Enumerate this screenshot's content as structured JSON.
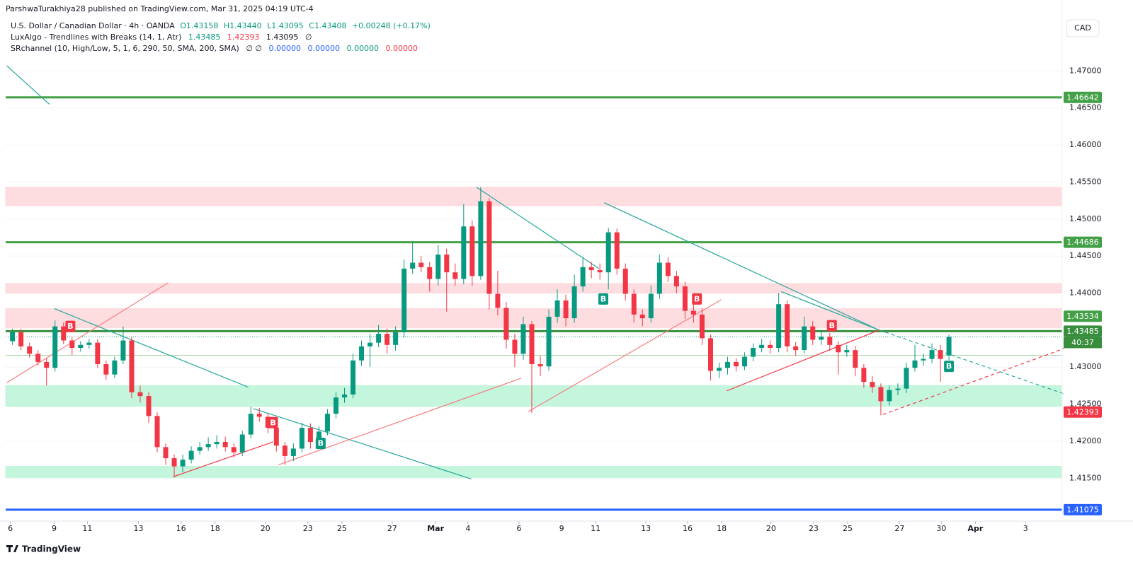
{
  "header": {
    "byline": "ParshwaTurakhiya28 published on TradingView.com, Mar 31, 2025 04:19 UTC-4",
    "symbol": "U.S. Dollar / Canadian Dollar · 4h · OANDA",
    "ohlc": [
      "O1.43158",
      "H1.43440",
      "L1.43095",
      "C1.43408"
    ],
    "change": "+0.00248 (+0.17%)",
    "indicators": [
      {
        "name": "LuxAlgo - Trendlines with Breaks (14, 1, Atr)",
        "values": [
          "1.43485",
          "1.42393",
          "1.43095",
          "∅"
        ]
      },
      {
        "name": "SRchannel (10, High/Low, 5, 1, 6, 290, 50, SMA, 200, SMA)",
        "values": [
          "∅ ∅",
          "0.00000",
          "0.00000",
          "0.00000",
          "0.00000"
        ]
      }
    ],
    "currency": "CAD"
  },
  "logo": "TradingView",
  "chart_data": {
    "type": "candlestick",
    "up_color": "#089981",
    "down_color": "#f23645",
    "open": [
      1.4335,
      1.4347,
      1.4328,
      1.4318,
      1.4307,
      1.4299,
      1.4355,
      1.4336,
      1.4326,
      1.433,
      1.4333,
      1.4304,
      1.429,
      1.4309,
      1.4336,
      1.4266,
      1.4261,
      1.4234,
      1.4192,
      1.4177,
      1.4166,
      1.4175,
      1.4187,
      1.4192,
      1.4196,
      1.4199,
      1.4192,
      1.4185,
      1.4209,
      1.4237,
      1.4233,
      1.4218,
      1.4194,
      1.418,
      1.419,
      1.4218,
      1.4199,
      1.4213,
      1.4237,
      1.4259,
      1.4263,
      1.4309,
      1.4328,
      1.4333,
      1.4345,
      1.433,
      1.4347,
      1.4433,
      1.4441,
      1.4435,
      1.4419,
      1.4452,
      1.4428,
      1.4419,
      1.449,
      1.4423,
      1.4524,
      1.4399,
      1.438,
      1.4337,
      1.4318,
      1.4358,
      1.4304,
      1.4301,
      1.4368,
      1.439,
      1.4366,
      1.4409,
      1.4435,
      1.4431,
      1.4428,
      1.4482,
      1.4433,
      1.4399,
      1.4371,
      1.4366,
      1.4399,
      1.4441,
      1.4423,
      1.4409,
      1.4376,
      1.4371,
      1.4339,
      1.4295,
      1.4299,
      1.4307,
      1.4301,
      1.4314,
      1.4326,
      1.433,
      1.4326,
      1.4385,
      1.4328,
      1.4323,
      1.4355,
      1.4337,
      1.4341,
      1.433,
      1.432,
      1.4323,
      1.4299,
      1.428,
      1.4273,
      1.4254,
      1.4269,
      1.4271,
      1.4299,
      1.4309,
      1.4311,
      1.4323,
      1.43158
    ],
    "high": [
      1.4352,
      1.4352,
      1.4333,
      1.4323,
      1.4312,
      1.4363,
      1.436,
      1.4341,
      1.4335,
      1.4338,
      1.4338,
      1.4309,
      1.4314,
      1.4355,
      1.4341,
      1.4275,
      1.4266,
      1.4239,
      1.4197,
      1.4182,
      1.4182,
      1.4193,
      1.4199,
      1.4205,
      1.4208,
      1.4206,
      1.4197,
      1.4214,
      1.4247,
      1.4245,
      1.4238,
      1.4223,
      1.4199,
      1.4197,
      1.4225,
      1.4224,
      1.422,
      1.4243,
      1.4266,
      1.4272,
      1.4318,
      1.4336,
      1.4345,
      1.4357,
      1.4352,
      1.4355,
      1.4445,
      1.4469,
      1.445,
      1.4442,
      1.4465,
      1.446,
      1.444,
      1.452,
      1.4498,
      1.4543,
      1.4528,
      1.443,
      1.4388,
      1.4345,
      1.4368,
      1.4362,
      1.4315,
      1.4378,
      1.4405,
      1.4398,
      1.4425,
      1.4448,
      1.4442,
      1.444,
      1.4488,
      1.4487,
      1.444,
      1.4405,
      1.4378,
      1.441,
      1.4452,
      1.4448,
      1.443,
      1.4415,
      1.4385,
      1.438,
      1.4344,
      1.4306,
      1.4314,
      1.4312,
      1.432,
      1.4332,
      1.4338,
      1.4336,
      1.44,
      1.439,
      1.4334,
      1.4368,
      1.4362,
      1.435,
      1.4346,
      1.4335,
      1.433,
      1.4328,
      1.4304,
      1.4288,
      1.4278,
      1.4275,
      1.4278,
      1.4306,
      1.433,
      1.4318,
      1.4332,
      1.433,
      1.4344
    ],
    "low": [
      1.433,
      1.4323,
      1.4313,
      1.4302,
      1.4275,
      1.4294,
      1.4331,
      1.4316,
      1.4321,
      1.4325,
      1.4299,
      1.4283,
      1.4285,
      1.4304,
      1.4258,
      1.4252,
      1.4225,
      1.4185,
      1.4168,
      1.4151,
      1.4158,
      1.417,
      1.4182,
      1.4187,
      1.419,
      1.4186,
      1.4178,
      1.418,
      1.4204,
      1.4226,
      1.4211,
      1.4186,
      1.4168,
      1.4173,
      1.4185,
      1.419,
      1.4193,
      1.4208,
      1.4231,
      1.4252,
      1.4258,
      1.4302,
      1.43,
      1.4327,
      1.4318,
      1.4322,
      1.434,
      1.4426,
      1.4428,
      1.4402,
      1.441,
      1.4375,
      1.441,
      1.4412,
      1.441,
      1.4418,
      1.4378,
      1.437,
      1.4325,
      1.43,
      1.431,
      1.4238,
      1.4288,
      1.4295,
      1.436,
      1.4355,
      1.436,
      1.4402,
      1.442,
      1.4418,
      1.4405,
      1.4425,
      1.439,
      1.436,
      1.4355,
      1.436,
      1.4392,
      1.4415,
      1.44,
      1.4365,
      1.436,
      1.433,
      1.4282,
      1.4285,
      1.429,
      1.4294,
      1.4296,
      1.4308,
      1.432,
      1.4318,
      1.432,
      1.432,
      1.4315,
      1.4318,
      1.433,
      1.433,
      1.4322,
      1.429,
      1.4314,
      1.4288,
      1.4272,
      1.4265,
      1.4235,
      1.4248,
      1.4262,
      1.4265,
      1.4294,
      1.4302,
      1.4305,
      1.428,
      1.43095
    ],
    "close": [
      1.4347,
      1.4328,
      1.4318,
      1.4307,
      1.4299,
      1.4355,
      1.4336,
      1.4326,
      1.433,
      1.4333,
      1.4304,
      1.429,
      1.4309,
      1.4336,
      1.4266,
      1.4261,
      1.4234,
      1.4192,
      1.4177,
      1.4166,
      1.4175,
      1.4187,
      1.4192,
      1.4196,
      1.4199,
      1.4192,
      1.4185,
      1.4209,
      1.4237,
      1.4233,
      1.4218,
      1.4194,
      1.418,
      1.419,
      1.4218,
      1.4199,
      1.4213,
      1.4237,
      1.4259,
      1.4263,
      1.4309,
      1.4328,
      1.4333,
      1.4345,
      1.433,
      1.4347,
      1.4433,
      1.4441,
      1.4435,
      1.4419,
      1.4452,
      1.4428,
      1.4419,
      1.449,
      1.4423,
      1.4524,
      1.4399,
      1.438,
      1.4337,
      1.4318,
      1.4358,
      1.4304,
      1.4301,
      1.4368,
      1.439,
      1.4366,
      1.4409,
      1.4435,
      1.4431,
      1.4428,
      1.4482,
      1.4433,
      1.4399,
      1.4371,
      1.4366,
      1.4399,
      1.4441,
      1.4423,
      1.4409,
      1.4376,
      1.4371,
      1.4339,
      1.4295,
      1.4299,
      1.4307,
      1.4301,
      1.4314,
      1.4326,
      1.433,
      1.4326,
      1.4385,
      1.4328,
      1.4323,
      1.4355,
      1.4337,
      1.4341,
      1.433,
      1.432,
      1.4323,
      1.4299,
      1.428,
      1.4273,
      1.4254,
      1.4269,
      1.4271,
      1.4299,
      1.4309,
      1.4311,
      1.4323,
      1.4311,
      1.43408
    ],
    "xlim": [
      -0.8,
      123.3
    ],
    "xticks": [
      {
        "value": -0.25,
        "label": "6"
      },
      {
        "value": 4.9,
        "label": "9"
      },
      {
        "value": 8.8,
        "label": "11"
      },
      {
        "value": 14.8,
        "label": "13"
      },
      {
        "value": 19.8,
        "label": "16"
      },
      {
        "value": 23.8,
        "label": "18"
      },
      {
        "value": 29.7,
        "label": "20"
      },
      {
        "value": 34.7,
        "label": "23"
      },
      {
        "value": 38.7,
        "label": "25"
      },
      {
        "value": 44.6,
        "label": "27"
      },
      {
        "value": 49.7,
        "label": "Mar"
      },
      {
        "value": 53.5,
        "label": "4"
      },
      {
        "value": 59.5,
        "label": "6"
      },
      {
        "value": 64.5,
        "label": "9"
      },
      {
        "value": 68.5,
        "label": "11"
      },
      {
        "value": 74.4,
        "label": "13"
      },
      {
        "value": 79.3,
        "label": "16"
      },
      {
        "value": 83.3,
        "label": "18"
      },
      {
        "value": 89.1,
        "label": "20"
      },
      {
        "value": 94.1,
        "label": "23"
      },
      {
        "value": 98.1,
        "label": "25"
      },
      {
        "value": 104.2,
        "label": "27"
      },
      {
        "value": 109.1,
        "label": "30"
      },
      {
        "value": 113.1,
        "label": "Apr"
      },
      {
        "value": 119,
        "label": "3"
      }
    ],
    "ylim": [
      1.4094,
      1.4769
    ],
    "yticks": [
      {
        "value": 1.415,
        "label": "1.41500"
      },
      {
        "value": 1.42,
        "label": "1.42000"
      },
      {
        "value": 1.425,
        "label": "1.42500"
      },
      {
        "value": 1.43,
        "label": "1.43000"
      },
      {
        "value": 1.435,
        "label": "1.43500"
      },
      {
        "value": 1.44,
        "label": "1.44000"
      },
      {
        "value": 1.445,
        "label": "1.44500"
      },
      {
        "value": 1.45,
        "label": "1.45000"
      },
      {
        "value": 1.455,
        "label": "1.45500"
      },
      {
        "value": 1.46,
        "label": "1.46000"
      },
      {
        "value": 1.465,
        "label": "1.46500"
      },
      {
        "value": 1.47,
        "label": "1.47000"
      }
    ],
    "grid": true,
    "zones": [
      {
        "low": 1.4518,
        "high": 1.4543,
        "color": "#fdd7da"
      },
      {
        "low": 1.44,
        "high": 1.4413,
        "color": "#fdd7da"
      },
      {
        "low": 1.4353,
        "high": 1.4379,
        "color": "#fdd7da"
      },
      {
        "low": 1.4247,
        "high": 1.4275,
        "color": "#b9f5d6"
      },
      {
        "low": 1.4151,
        "high": 1.4166,
        "color": "#b9f5d6"
      }
    ],
    "levels": [
      {
        "value": 1.46642,
        "color": "#43a047",
        "kind": "thick"
      },
      {
        "value": 1.44686,
        "color": "#43a047",
        "kind": "thick"
      },
      {
        "value": 1.43485,
        "color": "#388e3c",
        "kind": "thick"
      },
      {
        "value": 1.4316,
        "color": "#a5d6a7",
        "kind": "thin"
      },
      {
        "value": 1.41075,
        "color": "#2962ff",
        "kind": "thick"
      }
    ],
    "trendlines": [
      {
        "x0": -0.67,
        "y0": 1.4707,
        "x1": 4.33,
        "y1": 1.4655,
        "color": "#26a69a",
        "dashed": false
      },
      {
        "x0": 4.9,
        "y0": 1.4379,
        "x1": 27.7,
        "y1": 1.4273,
        "color": "#26a69a",
        "dashed": false
      },
      {
        "x0": -0.67,
        "y0": 1.4279,
        "x1": 18.3,
        "y1": 1.4414,
        "color": "#f77c80",
        "dashed": false
      },
      {
        "x0": 18.9,
        "y0": 1.4152,
        "x1": 30.6,
        "y1": 1.4199,
        "color": "#f23645",
        "dashed": false
      },
      {
        "x0": 28.3,
        "y0": 1.4244,
        "x1": 53.9,
        "y1": 1.4149,
        "color": "#26a69a",
        "dashed": false
      },
      {
        "x0": 31.25,
        "y0": 1.4168,
        "x1": 59.75,
        "y1": 1.4285,
        "color": "#f77c80",
        "dashed": false
      },
      {
        "x0": 54.5,
        "y0": 1.4543,
        "x1": 68.9,
        "y1": 1.4433,
        "color": "#26a69a",
        "dashed": false
      },
      {
        "x0": 60.6,
        "y0": 1.424,
        "x1": 83.25,
        "y1": 1.4391,
        "color": "#f77c80",
        "dashed": false
      },
      {
        "x0": 69.5,
        "y0": 1.4522,
        "x1": 101.8,
        "y1": 1.435,
        "color": "#26a69a",
        "dashed": false
      },
      {
        "x0": 90.3,
        "y0": 1.4402,
        "x1": 101.8,
        "y1": 1.435,
        "color": "#26a69a",
        "dashed": false
      },
      {
        "x0": 101.8,
        "y0": 1.435,
        "x1": 123.5,
        "y1": 1.4264,
        "color": "#26a69a",
        "dashed": true
      },
      {
        "x0": 83.9,
        "y0": 1.4268,
        "x1": 101.8,
        "y1": 1.435,
        "color": "#f23645",
        "dashed": false
      },
      {
        "x0": 102.25,
        "y0": 1.4236,
        "x1": 123.5,
        "y1": 1.4325,
        "color": "#f23645",
        "dashed": true
      }
    ],
    "signals": [
      {
        "x": 6.8,
        "price": 1.4355,
        "label": "B",
        "color": "#f23645"
      },
      {
        "x": 30.6,
        "price": 1.4225,
        "label": "B",
        "color": "#f23645"
      },
      {
        "x": 36.2,
        "price": 1.4197,
        "label": "B",
        "color": "#089981"
      },
      {
        "x": 69.4,
        "price": 1.4392,
        "label": "B",
        "color": "#089981"
      },
      {
        "x": 80.4,
        "price": 1.4392,
        "label": "B",
        "color": "#f23645"
      },
      {
        "x": 96.25,
        "price": 1.4356,
        "label": "B",
        "color": "#f23645"
      },
      {
        "x": 110,
        "price": 1.4301,
        "label": "B",
        "color": "#089981"
      }
    ],
    "price_labels": [
      {
        "value": 1.46642,
        "color": "#43a047"
      },
      {
        "value": 1.44686,
        "color": "#43a047"
      },
      {
        "value": 1.43485,
        "color": "#388e3c"
      },
      {
        "value": 1.43534,
        "color": "#43a047"
      },
      {
        "value": 1.42393,
        "color": "#f23645"
      },
      {
        "value": 1.41075,
        "color": "#2962ff"
      }
    ],
    "countdown": "40:37"
  }
}
